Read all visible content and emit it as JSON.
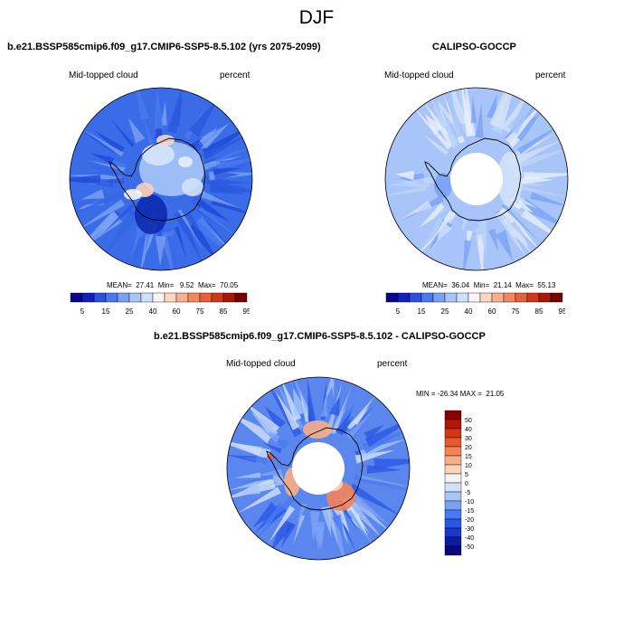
{
  "title": "DJF",
  "panels": [
    {
      "title": "b.e21.BSSP585cmip6.f09_g17.CMIP6-SSP5-8.5.102 (yrs 2075-2099)",
      "left_label": "Mid-topped cloud",
      "right_label": "percent",
      "stats": "MEAN=  27.41  Min=   9.52  Max=  70.05"
    },
    {
      "title": "CALIPSO-GOCCP",
      "left_label": "Mid-topped cloud",
      "right_label": "percent",
      "stats": "MEAN=  36.04  Min=  21.14  Max=  55.13"
    },
    {
      "title": "b.e21.BSSP585cmip6.f09_g17.CMIP6-SSP5-8.5.102 - CALIPSO-GOCCP",
      "left_label": "Mid-topped cloud",
      "right_label": "percent",
      "stats": "MIN = -26.34 MAX =  21.05"
    }
  ],
  "colorbar_abs": {
    "labels": [
      "5",
      "15",
      "25",
      "40",
      "60",
      "75",
      "85",
      "95"
    ],
    "colors": [
      "#08088a",
      "#1020c0",
      "#2a50e0",
      "#4a78ee",
      "#7aa0f4",
      "#a8c4f8",
      "#d0e0fa",
      "#f6f6f6",
      "#fbd8c2",
      "#f8b090",
      "#f28860",
      "#e86038",
      "#d03818",
      "#a81808",
      "#780000"
    ]
  },
  "colorbar_diff": {
    "labels": [
      "50",
      "40",
      "30",
      "20",
      "15",
      "10",
      "5",
      "0",
      "-5",
      "-10",
      "-15",
      "-20",
      "-30",
      "-40",
      "-50"
    ],
    "colors": [
      "#8a0000",
      "#b01808",
      "#d03818",
      "#e65a32",
      "#f2835a",
      "#f8ae8a",
      "#fcd2ba",
      "#f2f2f2",
      "#d2e2fa",
      "#a8c6f8",
      "#7aa2f4",
      "#4a7af0",
      "#2a58e4",
      "#1838c8",
      "#0c1ca0",
      "#080880"
    ]
  },
  "map_colors": {
    "land_outline": "#000000",
    "model_base": "#3a6ce8",
    "obs_base": "#a8c4f8",
    "diff_base": "#5a86ee"
  }
}
